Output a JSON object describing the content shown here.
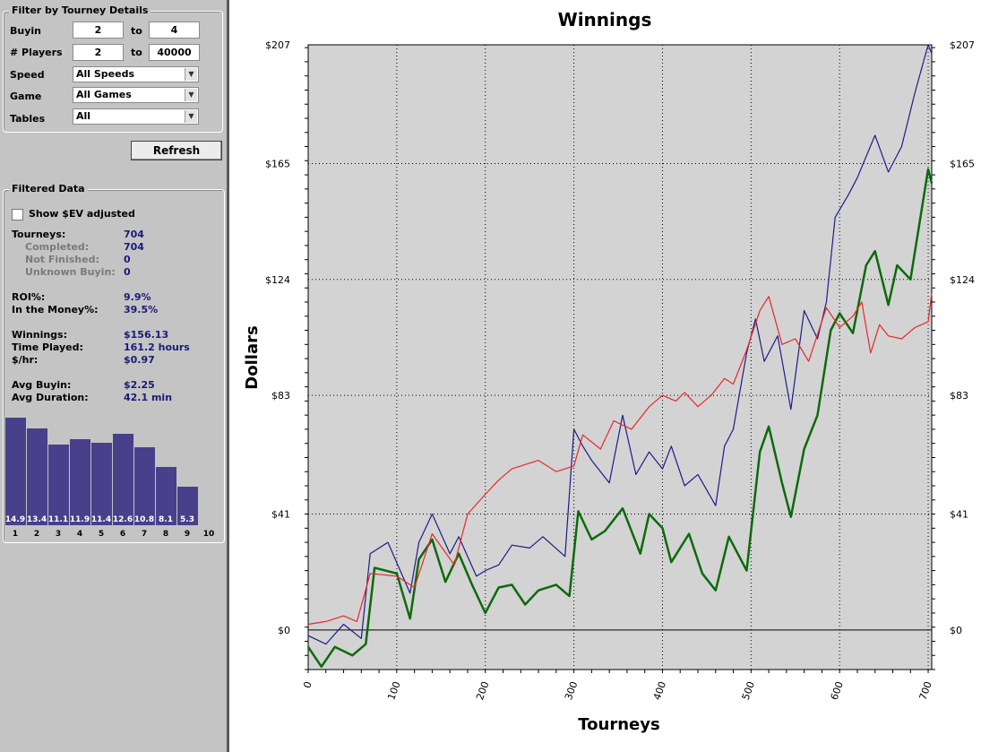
{
  "filter": {
    "title": "Filter by Tourney Details",
    "buyin_label": "Buyin",
    "buyin_from": "2",
    "buyin_to": "4",
    "players_label": "# Players",
    "players_from": "2",
    "players_to": "40000",
    "to_label": "to",
    "speed_label": "Speed",
    "speed_value": "All Speeds",
    "game_label": "Game",
    "game_value": "All Games",
    "tables_label": "Tables",
    "tables_value": "All",
    "refresh_label": "Refresh"
  },
  "filtered": {
    "title": "Filtered Data",
    "show_ev_label": "Show $EV adjusted",
    "tourneys_label": "Tourneys:",
    "tourneys": "704",
    "completed_label": "Completed:",
    "completed": "704",
    "not_finished_label": "Not Finished:",
    "not_finished": "0",
    "unknown_label": "Unknown Buyin:",
    "unknown": "0",
    "roi_label": "ROI%:",
    "roi": "9.9%",
    "itm_label": "In the Money%:",
    "itm": "39.5%",
    "winnings_label": "Winnings:",
    "winnings": "$156.13",
    "time_label": "Time Played:",
    "time": "161.2 hours",
    "hr_label": "$/hr:",
    "hr": "$0.97",
    "avg_buyin_label": "Avg Buyin:",
    "avg_buyin": "$2.25",
    "avg_dur_label": "Avg Duration:",
    "avg_dur": "42.1 min"
  },
  "histogram": {
    "values": [
      14.9,
      13.4,
      11.1,
      11.9,
      11.4,
      12.6,
      10.8,
      8.1,
      5.3
    ],
    "value_labels": [
      "14.9",
      "13.4",
      "11.1",
      "11.9",
      "11.4",
      "12.6",
      "10.8",
      "8.1",
      "5.3"
    ],
    "bins": [
      "1",
      "2",
      "3",
      "4",
      "5",
      "6",
      "7",
      "8",
      "9",
      "10"
    ]
  },
  "chart_data": {
    "type": "line",
    "title": "Winnings",
    "xlabel": "Tourneys",
    "ylabel": "Dollars",
    "xlim": [
      0,
      704
    ],
    "ylim": [
      -14,
      207
    ],
    "x_ticks": [
      "0",
      "100",
      "200",
      "300",
      "400",
      "500",
      "600",
      "700"
    ],
    "y_ticks": [
      "$0",
      "$41",
      "$83",
      "$124",
      "$165",
      "$207"
    ],
    "grid": true,
    "colors": {
      "background": "#d3d3d3",
      "blue": "#1c1c8c",
      "green": "#0b6a0b",
      "red": "#e82828"
    },
    "series": [
      {
        "color": "#1c1c8c",
        "x": [
          0,
          20,
          40,
          60,
          70,
          90,
          115,
          125,
          140,
          160,
          170,
          190,
          200,
          215,
          230,
          250,
          265,
          290,
          300,
          310,
          320,
          340,
          355,
          370,
          385,
          400,
          410,
          425,
          440,
          460,
          470,
          480,
          495,
          505,
          515,
          530,
          545,
          560,
          575,
          585,
          595,
          610,
          620,
          640,
          655,
          670,
          685,
          700,
          704
        ],
        "y": [
          -2,
          -5,
          2,
          -3,
          27,
          31,
          13,
          31,
          41,
          27,
          33,
          19,
          21,
          23,
          30,
          29,
          33,
          26,
          71,
          65,
          60,
          52,
          76,
          55,
          63,
          57,
          65,
          51,
          55,
          44,
          65,
          71,
          98,
          110,
          95,
          104,
          78,
          113,
          103,
          116,
          146,
          154,
          160,
          175,
          162,
          171,
          190,
          207,
          204
        ]
      },
      {
        "color": "#0b6a0b",
        "x": [
          0,
          15,
          30,
          50,
          65,
          75,
          100,
          115,
          125,
          140,
          155,
          170,
          185,
          200,
          215,
          230,
          245,
          260,
          280,
          295,
          305,
          320,
          335,
          355,
          375,
          385,
          400,
          410,
          430,
          445,
          460,
          475,
          495,
          510,
          520,
          535,
          545,
          560,
          575,
          590,
          600,
          615,
          630,
          640,
          655,
          665,
          680,
          700,
          704
        ],
        "y": [
          -6,
          -13,
          -6,
          -9,
          -5,
          22,
          20,
          4,
          25,
          32,
          17,
          27,
          16,
          6,
          15,
          16,
          9,
          14,
          16,
          12,
          42,
          32,
          35,
          43,
          27,
          41,
          36,
          24,
          34,
          20,
          14,
          33,
          21,
          63,
          72,
          52,
          40,
          64,
          76,
          106,
          112,
          105,
          129,
          134,
          115,
          129,
          124,
          163,
          158
        ]
      },
      {
        "color": "#e82828",
        "x": [
          0,
          20,
          40,
          55,
          70,
          100,
          120,
          140,
          165,
          180,
          200,
          215,
          230,
          260,
          280,
          300,
          310,
          330,
          345,
          365,
          385,
          400,
          415,
          425,
          440,
          455,
          470,
          480,
          495,
          510,
          520,
          535,
          550,
          565,
          585,
          600,
          615,
          625,
          635,
          645,
          655,
          670,
          685,
          700,
          704
        ],
        "y": [
          2,
          3,
          5,
          3,
          20,
          19,
          15,
          34,
          23,
          41,
          48,
          53,
          57,
          60,
          56,
          58,
          69,
          64,
          74,
          71,
          79,
          83,
          81,
          84,
          79,
          83,
          89,
          87,
          99,
          113,
          118,
          101,
          103,
          95,
          114,
          107,
          111,
          116,
          98,
          108,
          104,
          103,
          107,
          109,
          119
        ]
      }
    ]
  }
}
